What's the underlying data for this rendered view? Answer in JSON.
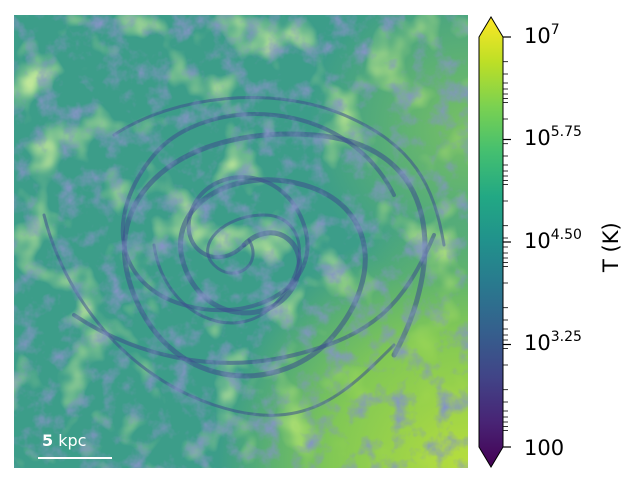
{
  "image": {
    "description_colors": {
      "base": "#3a9a8a",
      "dark_filaments": "#3b4a8c",
      "warm_regions": "#8fce4a",
      "hot_corner": "#b5dd3a"
    }
  },
  "scalebar": {
    "value": "5",
    "unit": "kpc"
  },
  "colorbar": {
    "title": "T (K)",
    "scale": "log",
    "range": [
      100,
      10000000
    ],
    "colormap": "viridis",
    "ticks": [
      {
        "base": "10",
        "exp": "7"
      },
      {
        "base": "10",
        "exp": "5.75"
      },
      {
        "base": "10",
        "exp": "4.50"
      },
      {
        "base": "10",
        "exp": "3.25"
      },
      {
        "base": "100",
        "exp": ""
      }
    ]
  }
}
